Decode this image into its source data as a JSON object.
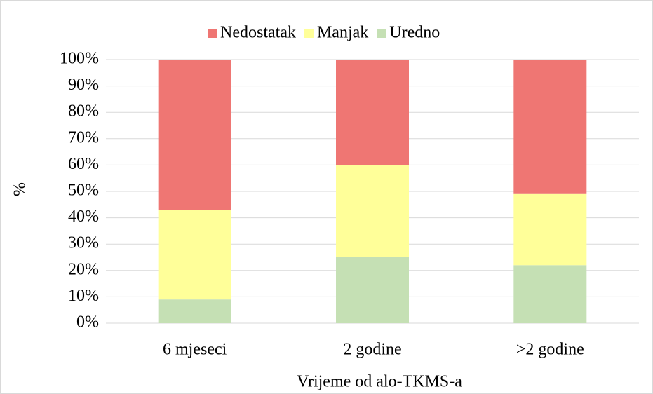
{
  "chart_data": {
    "type": "stacked_bar",
    "categories": [
      "6 mjeseci",
      "2 godine",
      ">2 godine"
    ],
    "series": [
      {
        "name": "Nedostatak",
        "color": "#ef7673",
        "values": [
          57,
          40,
          51
        ]
      },
      {
        "name": "Manjak",
        "color": "#ffff99",
        "values": [
          34,
          35,
          27
        ]
      },
      {
        "name": "Uredno",
        "color": "#c5e0b4",
        "values": [
          9,
          25,
          22
        ]
      }
    ],
    "ylim": [
      0,
      100
    ],
    "yticks": [
      {
        "value": 0,
        "label": "0%"
      },
      {
        "value": 10,
        "label": "10%"
      },
      {
        "value": 20,
        "label": "20%"
      },
      {
        "value": 30,
        "label": "30%"
      },
      {
        "value": 40,
        "label": "40%"
      },
      {
        "value": 50,
        "label": "50%"
      },
      {
        "value": 60,
        "label": "60%"
      },
      {
        "value": 70,
        "label": "70%"
      },
      {
        "value": 80,
        "label": "80%"
      },
      {
        "value": 90,
        "label": "90%"
      },
      {
        "value": 100,
        "label": "100%"
      }
    ],
    "ylabel": "%",
    "xlabel": "Vrijeme od alo-TKMS-a",
    "grid": true,
    "legend": "top"
  }
}
